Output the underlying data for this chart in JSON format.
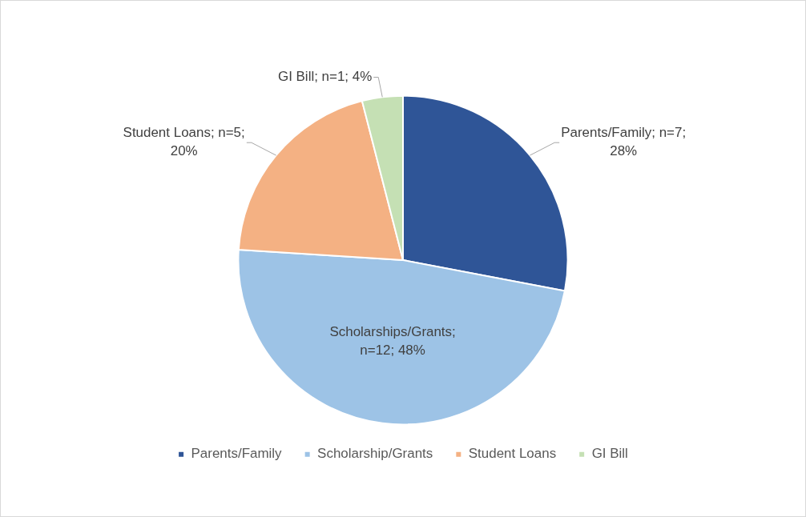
{
  "chart_data": {
    "type": "pie",
    "categories": [
      "Parents/Family",
      "Scholarship/Grants",
      "Student Loans",
      "GI Bill"
    ],
    "values": [
      7,
      12,
      5,
      1
    ],
    "colors": [
      "#2f5597",
      "#9dc3e6",
      "#f4b183",
      "#c5e0b4"
    ],
    "value_labels": [
      "Parents/Family; n=7; 28%",
      "Scholarships/Grants; n=12; 48%",
      "Student Loans; n=5; 20%",
      "GI Bill; n=1; 4%"
    ],
    "legend": "bottom"
  }
}
